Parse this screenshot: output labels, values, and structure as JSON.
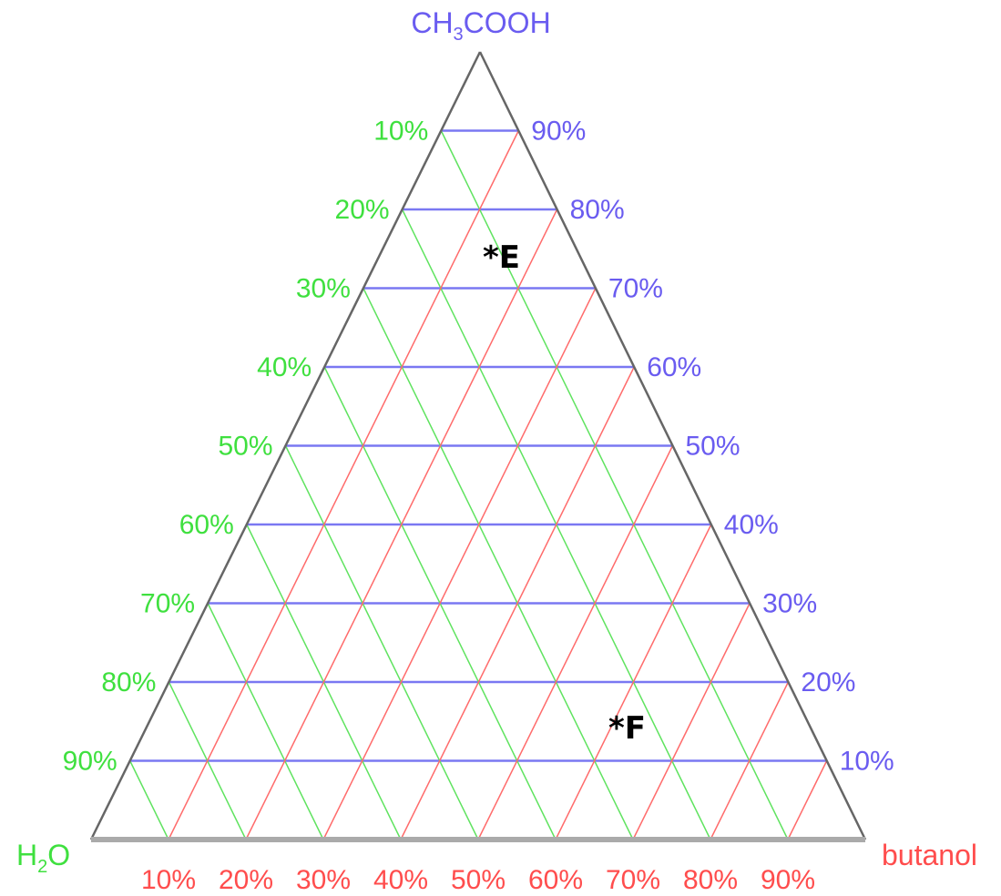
{
  "vertices": {
    "top": {
      "text": "CH",
      "sub": "3",
      "after": "COOH"
    },
    "left": {
      "text": "H",
      "sub": "2",
      "after": "O"
    },
    "right": {
      "text": "butanol"
    }
  },
  "left_ticks": [
    "10%",
    "20%",
    "30%",
    "40%",
    "50%",
    "60%",
    "70%",
    "80%",
    "90%"
  ],
  "right_ticks": [
    "90%",
    "80%",
    "70%",
    "60%",
    "50%",
    "40%",
    "30%",
    "20%",
    "10%"
  ],
  "bottom_ticks": [
    "10%",
    "20%",
    "30%",
    "40%",
    "50%",
    "60%",
    "70%",
    "80%",
    "90%"
  ],
  "points": [
    {
      "label": "*E"
    },
    {
      "label": "*F"
    }
  ],
  "colors": {
    "acid": "#6a5cf0",
    "water": "#3fe03f",
    "butanol": "#ff4d4d",
    "grid_acid": "#7a78f2",
    "grid_water": "#5fe35f",
    "grid_butanol": "#ff6b6b",
    "frame": "#666666",
    "base": "#aaaaaa",
    "points": "#000000"
  }
}
